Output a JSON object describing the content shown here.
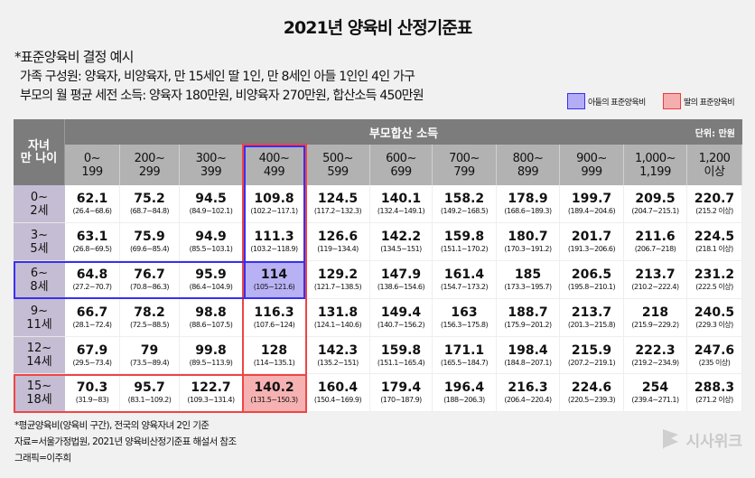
{
  "title": "2021년 양육비 산정기준표",
  "example": {
    "heading": "*표준양육비 결정 예시",
    "family": "가족 구성원: 양육자, 비양육자, 만 15세인 딸 1인, 만 8세인 아들 1인인 4인 가구",
    "income": "부모의 월 평균 세전 소득: 양육자 180만원, 비양육자 270만원, 합산소득 450만원"
  },
  "legend": [
    {
      "label": "아들의 표준양육비",
      "color": "#b3adf5",
      "border": "#3a2ff0"
    },
    {
      "label": "딸의 표준양육비",
      "color": "#f5aeae",
      "border": "#ee3b3b"
    }
  ],
  "table": {
    "corner": "자녀\n만 나이",
    "group_header": "부모합산 소득",
    "unit": "단위: 만원",
    "columns": [
      "0~\n199",
      "200~\n299",
      "300~\n399",
      "400~\n499",
      "500~\n599",
      "600~\n699",
      "700~\n799",
      "800~\n899",
      "900~\n999",
      "1,000~\n1,199",
      "1,200\n이상"
    ],
    "rows": [
      {
        "age": "0~\n2세",
        "cells": [
          [
            "62.1",
            "(26.4~68.6)"
          ],
          [
            "75.2",
            "(68.7~84.8)"
          ],
          [
            "94.5",
            "(84.9~102.1)"
          ],
          [
            "109.8",
            "(102.2~117.1)"
          ],
          [
            "124.5",
            "(117.2~132.3)"
          ],
          [
            "140.1",
            "(132.4~149.1)"
          ],
          [
            "158.2",
            "(149.2~168.5)"
          ],
          [
            "178.9",
            "(168.6~189.3)"
          ],
          [
            "199.7",
            "(189.4~204.6)"
          ],
          [
            "209.5",
            "(204.7~215.1)"
          ],
          [
            "220.7",
            "(215.2 이상)"
          ]
        ]
      },
      {
        "age": "3~\n5세",
        "cells": [
          [
            "63.1",
            "(26.8~69.5)"
          ],
          [
            "75.9",
            "(69.6~85.4)"
          ],
          [
            "94.9",
            "(85.5~103.1)"
          ],
          [
            "111.3",
            "(103.2~118.9)"
          ],
          [
            "126.6",
            "(119~134.4)"
          ],
          [
            "142.2",
            "(134.5~151)"
          ],
          [
            "159.8",
            "(151.1~170.2)"
          ],
          [
            "180.7",
            "(170.3~191.2)"
          ],
          [
            "201.7",
            "(191.3~206.6)"
          ],
          [
            "211.6",
            "(206.7~218)"
          ],
          [
            "224.5",
            "(218.1 이상)"
          ]
        ]
      },
      {
        "age": "6~\n8세",
        "cells": [
          [
            "64.8",
            "(27.2~70.7)"
          ],
          [
            "76.7",
            "(70.8~86.3)"
          ],
          [
            "95.9",
            "(86.4~104.9)"
          ],
          [
            "114",
            "(105~121.6)"
          ],
          [
            "129.2",
            "(121.7~138.5)"
          ],
          [
            "147.9",
            "(138.6~154.6)"
          ],
          [
            "161.4",
            "(154.7~173.2)"
          ],
          [
            "185",
            "(173.3~195.7)"
          ],
          [
            "206.5",
            "(195.8~210.1)"
          ],
          [
            "213.7",
            "(210.2~222.4)"
          ],
          [
            "231.2",
            "(222.5 이상)"
          ]
        ]
      },
      {
        "age": "9~\n11세",
        "cells": [
          [
            "66.7",
            "(28.1~72.4)"
          ],
          [
            "78.2",
            "(72.5~88.5)"
          ],
          [
            "98.8",
            "(88.6~107.5)"
          ],
          [
            "116.3",
            "(107.6~124)"
          ],
          [
            "131.8",
            "(124.1~140.6)"
          ],
          [
            "149.4",
            "(140.7~156.2)"
          ],
          [
            "163",
            "(156.3~175.8)"
          ],
          [
            "188.7",
            "(175.9~201.2)"
          ],
          [
            "213.7",
            "(201.3~215.8)"
          ],
          [
            "218",
            "(215.9~229.2)"
          ],
          [
            "240.5",
            "(229.3 이상)"
          ]
        ]
      },
      {
        "age": "12~\n14세",
        "cells": [
          [
            "67.9",
            "(29.5~73.4)"
          ],
          [
            "79",
            "(73.5~89.4)"
          ],
          [
            "99.8",
            "(89.5~113.9)"
          ],
          [
            "128",
            "(114~135.1)"
          ],
          [
            "142.3",
            "(135.2~151)"
          ],
          [
            "159.8",
            "(151.1~165.4)"
          ],
          [
            "171.1",
            "(165.5~184.7)"
          ],
          [
            "198.4",
            "(184.8~207.1)"
          ],
          [
            "215.9",
            "(207.2~219.1)"
          ],
          [
            "222.3",
            "(219.2~234.9)"
          ],
          [
            "247.6",
            "(235 이상)"
          ]
        ]
      },
      {
        "age": "15~\n18세",
        "cells": [
          [
            "70.3",
            "(31.9~83)"
          ],
          [
            "95.7",
            "(83.1~109.2)"
          ],
          [
            "122.7",
            "(109.3~131.4)"
          ],
          [
            "140.2",
            "(131.5~150.3)"
          ],
          [
            "160.4",
            "(150.4~169.9)"
          ],
          [
            "179.4",
            "(170~187.9)"
          ],
          [
            "196.4",
            "(188~206.3)"
          ],
          [
            "216.3",
            "(206.4~220.4)"
          ],
          [
            "224.6",
            "(220.5~239.3)"
          ],
          [
            "254",
            "(239.4~271.1)"
          ],
          [
            "288.3",
            "(271.2 이상)"
          ]
        ]
      }
    ]
  },
  "footnotes": [
    "*평균양육비(양육비 구간), 전국의 양육자녀 2인 기준",
    "자료=서울가정법원, 2021년 양육비산정기준표 해설서 참조",
    "그래픽=이주희"
  ],
  "logo": "시사위크"
}
